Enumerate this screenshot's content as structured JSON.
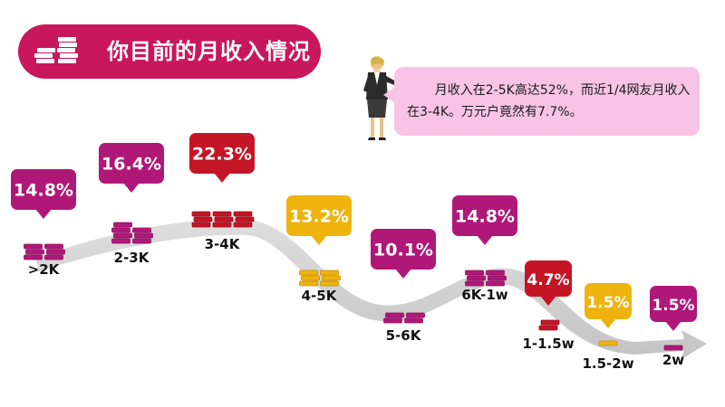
{
  "header": {
    "title": "你目前的月收入情况",
    "color": "#c8175b"
  },
  "note": {
    "text": "月收入在2-5K高达52%，而近1/4网友月收入在3-4K。万元户竟然有7.7%。",
    "bg_color": "#f8c4e6"
  },
  "colors": {
    "magenta": "#b01878",
    "red": "#c41526",
    "gold": "#eeb40d",
    "arrow": "#d3d3d3"
  },
  "chart_data": {
    "type": "bar",
    "categories": [
      ">2K",
      "2-3K",
      "3-4K",
      "4-5K",
      "5-6K",
      "6K-1w",
      "1-1.5w",
      "1.5-2w",
      "2w"
    ],
    "values": [
      14.8,
      16.4,
      22.3,
      13.2,
      10.1,
      14.8,
      4.7,
      1.5,
      1.5
    ],
    "value_labels": [
      "14.8%",
      "16.4%",
      "22.3%",
      "13.2%",
      "10.1%",
      "14.8%",
      "4.7%",
      "1.5%",
      "1.5%"
    ],
    "colors": [
      "magenta",
      "magenta",
      "red",
      "gold",
      "magenta",
      "magenta",
      "red",
      "gold",
      "magenta"
    ],
    "unit": "%"
  }
}
